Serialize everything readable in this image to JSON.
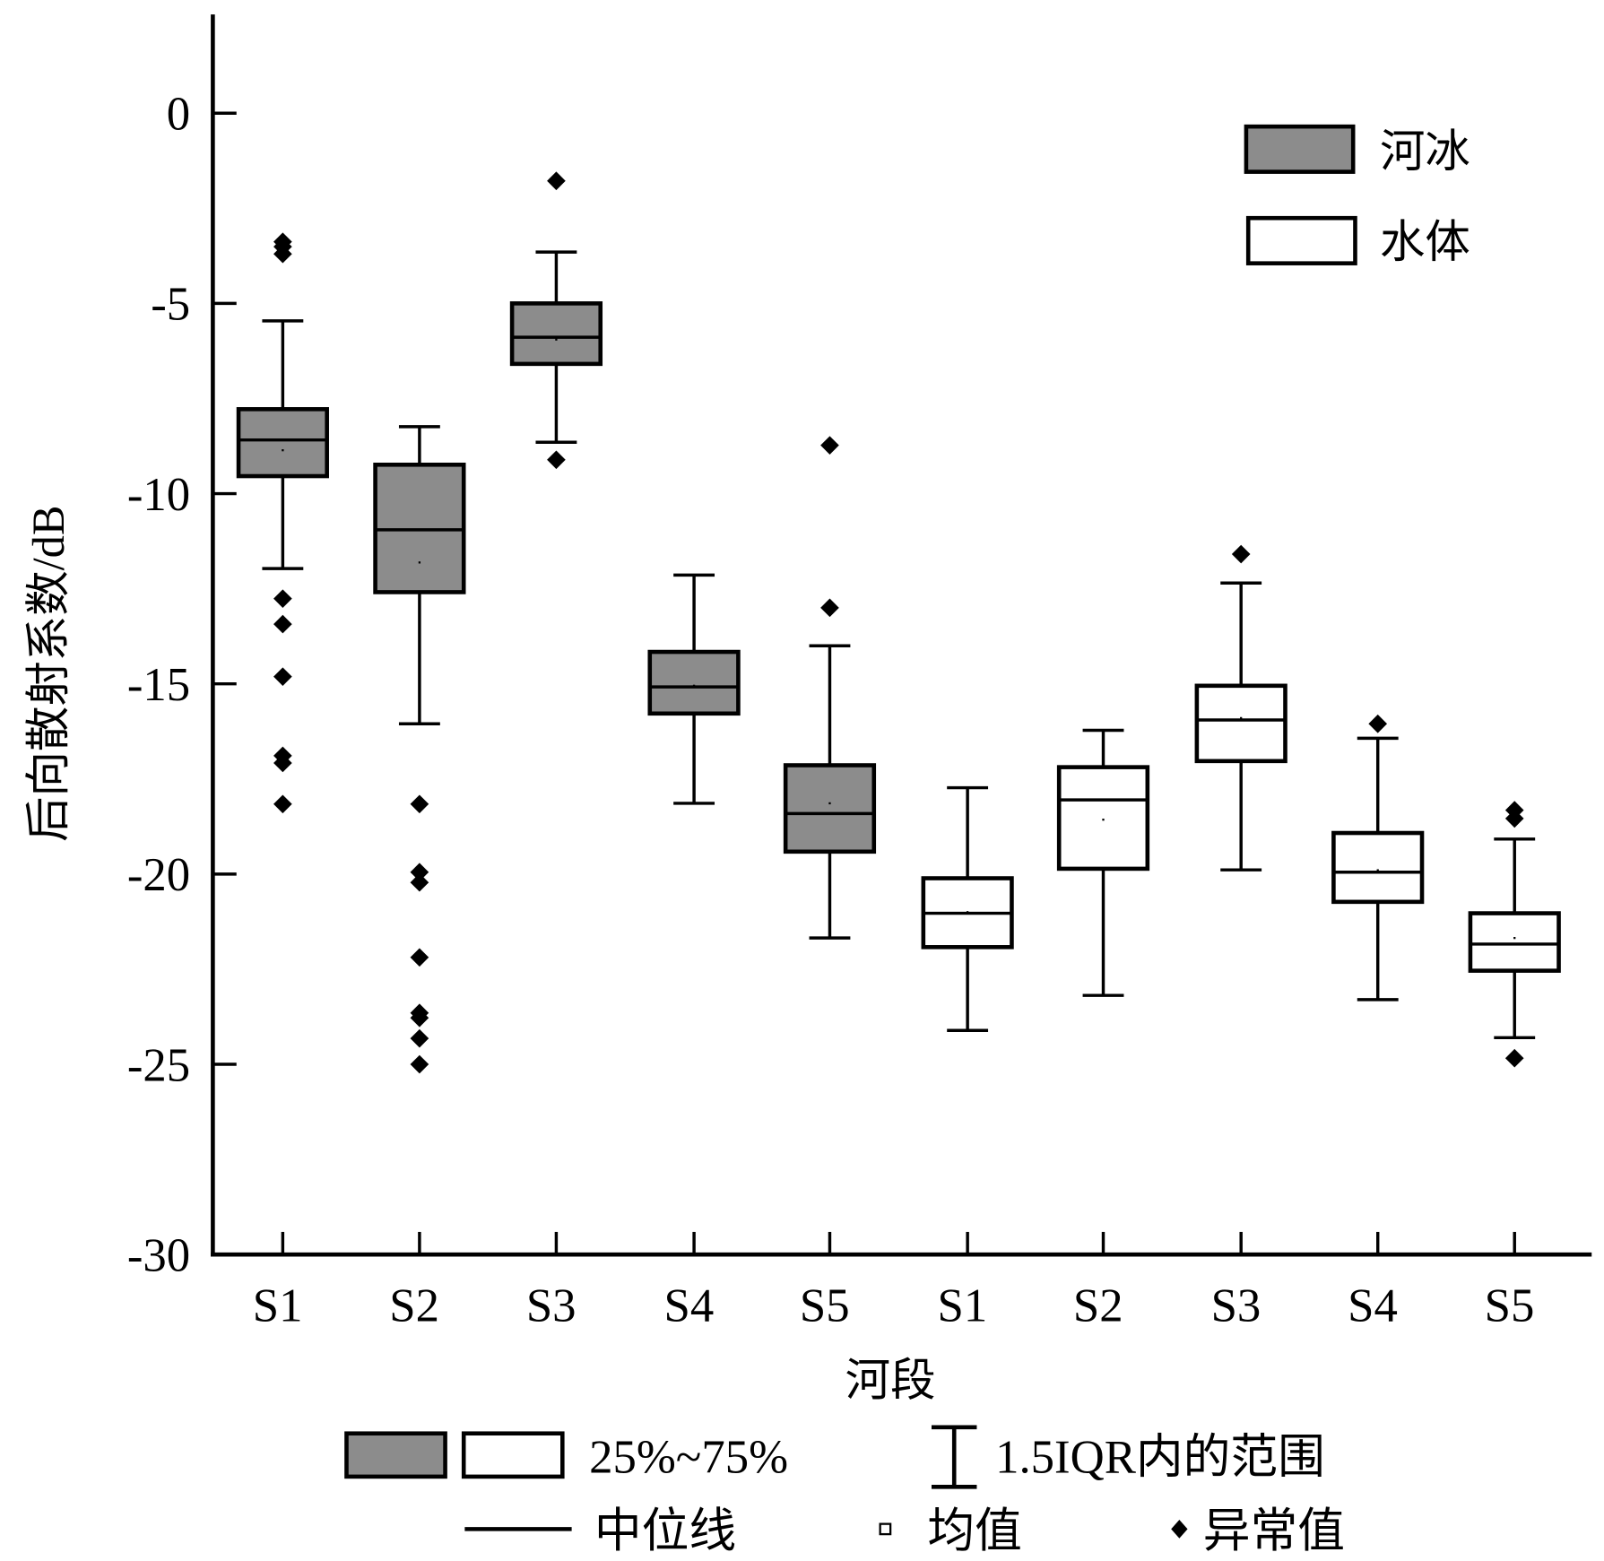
{
  "chart_data": {
    "type": "box",
    "ylabel": "后向散射系数/dB",
    "xlabel": "河段",
    "ylim": [
      -30,
      2.6
    ],
    "yticks": [
      0,
      -5,
      -10,
      -15,
      -20,
      -25,
      -30
    ],
    "ytick_labels": [
      "0",
      "-5",
      "-10",
      "-15",
      "-20",
      "-25",
      "-30"
    ],
    "categories": [
      "S1",
      "S2",
      "S3",
      "S4",
      "S5",
      "S1",
      "S2",
      "S3",
      "S4",
      "S5"
    ],
    "series": [
      {
        "name": "河冰",
        "fill": "#8c8c8c",
        "boxes": [
          {
            "cat": "S1",
            "whisker_high": -5.46,
            "q3": -7.78,
            "median": -8.59,
            "q1": -9.54,
            "whisker_low": -11.97,
            "mean": -8.86,
            "outliers": [
              -3.38,
              -3.51,
              -3.7,
              -12.76,
              -13.43,
              -14.81,
              -16.89,
              -17.08,
              -18.16
            ]
          },
          {
            "cat": "S2",
            "whisker_high": -8.24,
            "q3": -9.24,
            "median": -10.95,
            "q1": -12.59,
            "whisker_low": -16.05,
            "mean": -11.81,
            "outliers": [
              -18.16,
              -19.95,
              -20.22,
              -22.19,
              -23.65,
              -23.78,
              -24.32,
              -25.0
            ]
          },
          {
            "cat": "S3",
            "whisker_high": -3.65,
            "q3": -5.0,
            "median": -5.89,
            "q1": -6.59,
            "whisker_low": -8.65,
            "mean": -5.95,
            "outliers": [
              -1.78,
              -9.11
            ]
          },
          {
            "cat": "S4",
            "whisker_high": -12.14,
            "q3": -14.16,
            "median": -15.08,
            "q1": -15.78,
            "whisker_low": -18.14,
            "mean": -15.05,
            "outliers": []
          },
          {
            "cat": "S5",
            "whisker_high": -14.0,
            "q3": -17.14,
            "median": -18.41,
            "q1": -19.41,
            "whisker_low": -21.68,
            "mean": -18.14,
            "outliers": [
              -8.73,
              -13.0
            ]
          }
        ]
      },
      {
        "name": "水体",
        "fill": "#ffffff",
        "boxes": [
          {
            "cat": "S1",
            "whisker_high": -17.73,
            "q3": -20.11,
            "median": -21.03,
            "q1": -21.92,
            "whisker_low": -24.11,
            "mean": -21.0,
            "outliers": []
          },
          {
            "cat": "S2",
            "whisker_high": -16.22,
            "q3": -17.19,
            "median": -18.05,
            "q1": -19.86,
            "whisker_low": -23.19,
            "mean": -18.57,
            "outliers": []
          },
          {
            "cat": "S3",
            "whisker_high": -12.35,
            "q3": -15.05,
            "median": -15.95,
            "q1": -17.03,
            "whisker_low": -19.89,
            "mean": -15.9,
            "outliers": [
              -11.59
            ]
          },
          {
            "cat": "S4",
            "whisker_high": -16.43,
            "q3": -18.92,
            "median": -19.95,
            "q1": -20.73,
            "whisker_low": -23.3,
            "mean": -19.9,
            "outliers": [
              -16.05
            ]
          },
          {
            "cat": "S5",
            "whisker_high": -19.08,
            "q3": -21.03,
            "median": -21.84,
            "q1": -22.54,
            "whisker_low": -24.3,
            "mean": -21.68,
            "outliers": [
              -18.32,
              -18.54,
              -24.84
            ]
          }
        ]
      }
    ],
    "legend_position": "top-right",
    "legend": [
      "河冰",
      "水体"
    ],
    "key": {
      "box_label": "25%~75%",
      "whisker_label": "1.5IQR内的范围",
      "median_label": "中位线",
      "mean_label": "均值",
      "outlier_label": "异常值"
    }
  }
}
